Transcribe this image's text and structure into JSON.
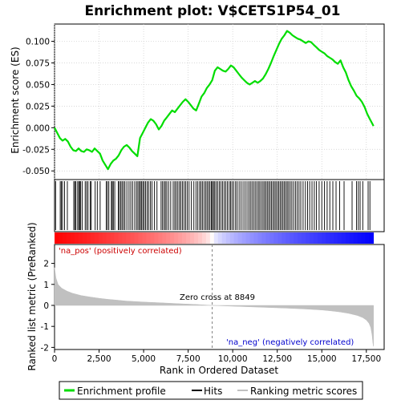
{
  "chart_data": {
    "type": "line",
    "title": "Enrichment plot: V$CETS1P54_01",
    "xlabel": "Rank in Ordered Dataset",
    "top_ylabel": "Enrichment score (ES)",
    "bottom_ylabel": "Ranked list metric (PreRanked)",
    "xlim": [
      0,
      18500
    ],
    "es_ylim": [
      -0.06,
      0.12
    ],
    "metric_ylim": [
      -2.1,
      2.9
    ],
    "x_ticks": [
      0,
      2500,
      5000,
      7500,
      10000,
      12500,
      15000,
      17500
    ],
    "x_tick_labels": [
      "0",
      "2,500",
      "5,000",
      "7,500",
      "10,000",
      "12,500",
      "15,000",
      "17,500"
    ],
    "es_ticks": [
      -0.05,
      -0.025,
      0.0,
      0.025,
      0.05,
      0.075,
      0.1
    ],
    "es_tick_labels": [
      "-0.050",
      "-0.025",
      "0.000",
      "0.025",
      "0.050",
      "0.075",
      "0.100"
    ],
    "metric_ticks": [
      -2,
      -1,
      0,
      1,
      2
    ],
    "metric_tick_labels": [
      "-2",
      "-1",
      "0",
      "1",
      "2"
    ],
    "legend_placement": "bottom",
    "legend": [
      "Enrichment profile",
      "Hits",
      "Ranking metric scores"
    ],
    "annotations": {
      "pos_label": "'na_pos' (positively correlated)",
      "neg_label": "'na_neg' (negatively correlated)",
      "zero_cross_label": "Zero cross at 8849",
      "zero_cross": 8849
    },
    "colors": {
      "profile": "#00dd00",
      "hits": "#000000",
      "metric_fill": "#c0c0c0",
      "pos": "#ff0000",
      "neg": "#0000ff",
      "zero_line": "#808080"
    },
    "n_genes": 17900,
    "es_profile": [
      [
        0,
        0.0
      ],
      [
        150,
        -0.006
      ],
      [
        300,
        -0.012
      ],
      [
        450,
        -0.015
      ],
      [
        600,
        -0.013
      ],
      [
        750,
        -0.016
      ],
      [
        900,
        -0.022
      ],
      [
        1050,
        -0.026
      ],
      [
        1200,
        -0.027
      ],
      [
        1350,
        -0.024
      ],
      [
        1500,
        -0.027
      ],
      [
        1650,
        -0.028
      ],
      [
        1800,
        -0.025
      ],
      [
        1950,
        -0.026
      ],
      [
        2100,
        -0.028
      ],
      [
        2250,
        -0.024
      ],
      [
        2400,
        -0.027
      ],
      [
        2550,
        -0.03
      ],
      [
        2700,
        -0.038
      ],
      [
        2850,
        -0.043
      ],
      [
        3000,
        -0.048
      ],
      [
        3150,
        -0.042
      ],
      [
        3300,
        -0.038
      ],
      [
        3450,
        -0.036
      ],
      [
        3600,
        -0.032
      ],
      [
        3750,
        -0.026
      ],
      [
        3900,
        -0.022
      ],
      [
        4050,
        -0.02
      ],
      [
        4200,
        -0.023
      ],
      [
        4350,
        -0.027
      ],
      [
        4500,
        -0.03
      ],
      [
        4650,
        -0.033
      ],
      [
        4800,
        -0.012
      ],
      [
        4950,
        -0.006
      ],
      [
        5100,
        0.0
      ],
      [
        5250,
        0.006
      ],
      [
        5400,
        0.01
      ],
      [
        5550,
        0.008
      ],
      [
        5700,
        0.004
      ],
      [
        5850,
        -0.002
      ],
      [
        6000,
        0.002
      ],
      [
        6150,
        0.008
      ],
      [
        6300,
        0.012
      ],
      [
        6450,
        0.016
      ],
      [
        6600,
        0.02
      ],
      [
        6750,
        0.018
      ],
      [
        6900,
        0.022
      ],
      [
        7050,
        0.026
      ],
      [
        7200,
        0.03
      ],
      [
        7350,
        0.033
      ],
      [
        7500,
        0.03
      ],
      [
        7650,
        0.026
      ],
      [
        7800,
        0.022
      ],
      [
        7950,
        0.02
      ],
      [
        8100,
        0.028
      ],
      [
        8250,
        0.036
      ],
      [
        8400,
        0.04
      ],
      [
        8550,
        0.046
      ],
      [
        8700,
        0.05
      ],
      [
        8850,
        0.055
      ],
      [
        9000,
        0.066
      ],
      [
        9150,
        0.07
      ],
      [
        9300,
        0.068
      ],
      [
        9450,
        0.066
      ],
      [
        9600,
        0.065
      ],
      [
        9750,
        0.068
      ],
      [
        9900,
        0.072
      ],
      [
        10050,
        0.07
      ],
      [
        10200,
        0.066
      ],
      [
        10350,
        0.062
      ],
      [
        10500,
        0.058
      ],
      [
        10650,
        0.055
      ],
      [
        10800,
        0.052
      ],
      [
        10950,
        0.05
      ],
      [
        11100,
        0.052
      ],
      [
        11250,
        0.054
      ],
      [
        11400,
        0.052
      ],
      [
        11550,
        0.054
      ],
      [
        11700,
        0.057
      ],
      [
        11850,
        0.062
      ],
      [
        12000,
        0.068
      ],
      [
        12150,
        0.075
      ],
      [
        12300,
        0.083
      ],
      [
        12450,
        0.09
      ],
      [
        12600,
        0.097
      ],
      [
        12750,
        0.103
      ],
      [
        12900,
        0.107
      ],
      [
        13050,
        0.112
      ],
      [
        13200,
        0.11
      ],
      [
        13350,
        0.107
      ],
      [
        13500,
        0.105
      ],
      [
        13650,
        0.103
      ],
      [
        13800,
        0.102
      ],
      [
        13950,
        0.1
      ],
      [
        14100,
        0.098
      ],
      [
        14250,
        0.1
      ],
      [
        14400,
        0.099
      ],
      [
        14550,
        0.096
      ],
      [
        14700,
        0.093
      ],
      [
        14850,
        0.09
      ],
      [
        15000,
        0.088
      ],
      [
        15150,
        0.086
      ],
      [
        15300,
        0.083
      ],
      [
        15450,
        0.081
      ],
      [
        15600,
        0.079
      ],
      [
        15750,
        0.076
      ],
      [
        15900,
        0.074
      ],
      [
        16050,
        0.078
      ],
      [
        16200,
        0.07
      ],
      [
        16350,
        0.064
      ],
      [
        16500,
        0.055
      ],
      [
        16650,
        0.048
      ],
      [
        16800,
        0.043
      ],
      [
        16950,
        0.037
      ],
      [
        17100,
        0.034
      ],
      [
        17250,
        0.03
      ],
      [
        17400,
        0.024
      ],
      [
        17550,
        0.016
      ],
      [
        17700,
        0.01
      ],
      [
        17850,
        0.004
      ],
      [
        17900,
        0.002
      ]
    ],
    "metric_profile": [
      [
        0,
        1.8
      ],
      [
        80,
        1.3
      ],
      [
        200,
        1.0
      ],
      [
        400,
        0.82
      ],
      [
        700,
        0.68
      ],
      [
        1000,
        0.58
      ],
      [
        1500,
        0.47
      ],
      [
        2000,
        0.4
      ],
      [
        2500,
        0.34
      ],
      [
        3000,
        0.29
      ],
      [
        3500,
        0.25
      ],
      [
        4000,
        0.21
      ],
      [
        5000,
        0.16
      ],
      [
        6000,
        0.12
      ],
      [
        7000,
        0.08
      ],
      [
        8000,
        0.04
      ],
      [
        8849,
        0.0
      ],
      [
        10000,
        -0.04
      ],
      [
        11000,
        -0.07
      ],
      [
        12000,
        -0.1
      ],
      [
        13000,
        -0.13
      ],
      [
        14000,
        -0.17
      ],
      [
        15000,
        -0.22
      ],
      [
        15500,
        -0.26
      ],
      [
        16000,
        -0.31
      ],
      [
        16500,
        -0.38
      ],
      [
        17000,
        -0.48
      ],
      [
        17300,
        -0.58
      ],
      [
        17500,
        -0.7
      ],
      [
        17650,
        -0.85
      ],
      [
        17750,
        -1.05
      ],
      [
        17820,
        -1.4
      ],
      [
        17870,
        -1.8
      ],
      [
        17900,
        -1.95
      ]
    ],
    "hits": [
      60,
      320,
      380,
      450,
      560,
      720,
      1080,
      1140,
      1200,
      1300,
      1360,
      1420,
      1470,
      1560,
      1720,
      1800,
      1880,
      2000,
      2060,
      2280,
      2400,
      2560,
      2900,
      2970,
      3050,
      3190,
      3240,
      3300,
      3380,
      3580,
      3640,
      3720,
      3790,
      3870,
      3950,
      4060,
      4180,
      4280,
      4380,
      4500,
      4600,
      4680,
      4760,
      4820,
      4890,
      4960,
      5030,
      5110,
      5200,
      5280,
      5380,
      5470,
      5600,
      5750,
      5980,
      6060,
      6150,
      6220,
      6300,
      6400,
      6520,
      6660,
      6750,
      6830,
      6920,
      7010,
      7090,
      7180,
      7270,
      7360,
      7450,
      7550,
      7680,
      7820,
      7940,
      8040,
      8140,
      8220,
      8300,
      8390,
      8480,
      8560,
      8640,
      8720,
      8800,
      8860,
      8920,
      8990,
      9070,
      9160,
      9250,
      9340,
      9430,
      9520,
      9610,
      9700,
      9800,
      9880,
      9960,
      10050,
      10160,
      10250,
      10360,
      10470,
      10580,
      10690,
      10800,
      10900,
      10990,
      11080,
      11170,
      11260,
      11350,
      11440,
      11520,
      11610,
      11700,
      11780,
      11860,
      11940,
      12020,
      12100,
      12180,
      12260,
      12340,
      12420,
      12500,
      12580,
      12660,
      12740,
      12820,
      12900,
      12980,
      13060,
      13140,
      13230,
      13320,
      13420,
      13520,
      13620,
      13720,
      13820,
      13950,
      14080,
      14200,
      14320,
      14450,
      14580,
      14700,
      14850,
      15000,
      15150,
      15300,
      15450,
      15620,
      15800,
      16000,
      16250,
      16700,
      16950,
      17050,
      17150,
      17300,
      17600,
      17700
    ]
  }
}
